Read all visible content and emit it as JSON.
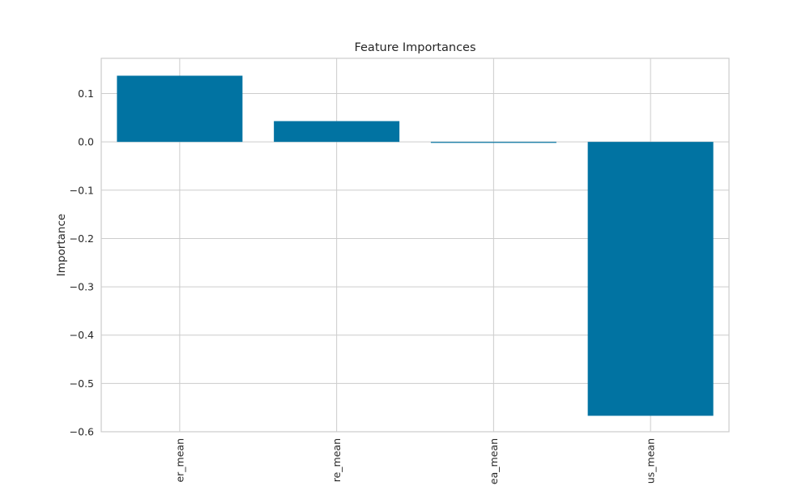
{
  "chart_data": {
    "type": "bar",
    "title": "Feature Importances",
    "xlabel": "",
    "ylabel": "Importance",
    "categories": [
      "er_mean",
      "re_mean",
      "ea_mean",
      "us_mean"
    ],
    "values": [
      0.137,
      0.043,
      -0.002,
      -0.567
    ],
    "ylim": [
      -0.6,
      0.173
    ],
    "yticks": [
      0.1,
      0.0,
      -0.1,
      -0.2,
      -0.3,
      -0.4,
      -0.5,
      -0.6
    ],
    "ytick_labels": [
      "0.1",
      "0.0",
      "−0.1",
      "−0.2",
      "−0.3",
      "−0.4",
      "−0.5",
      "−0.6"
    ],
    "grid": true,
    "legend": "none",
    "bar_color": "#0173a2",
    "grid_color": "#cccccc",
    "frame_color": "#cccccc"
  }
}
